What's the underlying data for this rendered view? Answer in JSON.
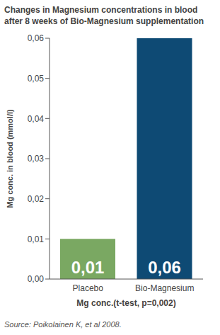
{
  "chart_data": {
    "type": "bar",
    "title": "Changes in Magnesium concentrations in blood after 8 weeks of Bio-Magnesium supplementation",
    "categories": [
      "Placebo",
      "Bio-Magnesium"
    ],
    "values": [
      0.01,
      0.06
    ],
    "value_labels": [
      "0,01",
      "0,06"
    ],
    "colors": [
      "#7aa862",
      "#0e4a74"
    ],
    "x_label": "Mg conc.(t-test, p=0,002)",
    "y_label": "Mg conc. in blood (mmol/l)",
    "ylim": [
      0,
      0.06
    ],
    "yticks": [
      {
        "value": 0,
        "label": "0,00"
      },
      {
        "value": 0.01,
        "label": "0,01"
      },
      {
        "value": 0.02,
        "label": "0,02"
      },
      {
        "value": 0.03,
        "label": "0,03"
      },
      {
        "value": 0.04,
        "label": "0,04"
      },
      {
        "value": 0.05,
        "label": "0,05"
      },
      {
        "value": 0.06,
        "label": "0,06"
      }
    ],
    "grid": false,
    "data_labels": true,
    "annotations": [
      "Source: Poikolainen K, et al 2008."
    ]
  }
}
